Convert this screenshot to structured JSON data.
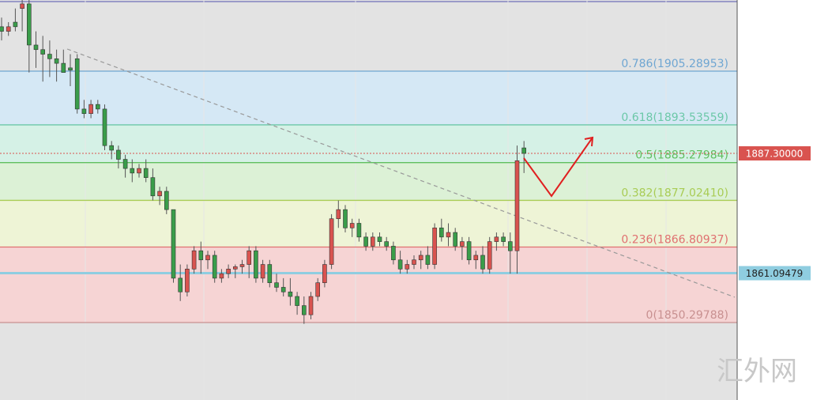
{
  "chart_data": {
    "type": "candlestick",
    "ylim": [
      1833.35,
      1920.85
    ],
    "up_color": "#d9534f",
    "down_color": "#3a9d4a",
    "ohlc": [
      [
        1915,
        1917,
        1912,
        1914
      ],
      [
        1914,
        1916,
        1913,
        1915
      ],
      [
        1916,
        1919,
        1914,
        1915
      ],
      [
        1919,
        1921,
        1914,
        1920
      ],
      [
        1920,
        1921,
        1905,
        1911
      ],
      [
        1911,
        1914,
        1906,
        1910
      ],
      [
        1910,
        1913,
        1903,
        1909
      ],
      [
        1909,
        1912,
        1904,
        1908
      ],
      [
        1908,
        1910,
        1903,
        1907
      ],
      [
        1907,
        1910,
        1905,
        1905
      ],
      [
        1906,
        1909,
        1902,
        1905.5
      ],
      [
        1908,
        1909,
        1896,
        1897
      ],
      [
        1897,
        1899,
        1895,
        1896
      ],
      [
        1896,
        1899,
        1895,
        1898
      ],
      [
        1898,
        1899,
        1896,
        1897
      ],
      [
        1897,
        1898,
        1888,
        1889
      ],
      [
        1889,
        1890,
        1886,
        1888
      ],
      [
        1888,
        1889,
        1884,
        1886
      ],
      [
        1886,
        1887,
        1882,
        1884
      ],
      [
        1884,
        1886,
        1881,
        1883
      ],
      [
        1883,
        1885,
        1882,
        1884
      ],
      [
        1884,
        1886,
        1881,
        1882
      ],
      [
        1882,
        1884,
        1877,
        1878
      ],
      [
        1878,
        1880,
        1876,
        1879
      ],
      [
        1879,
        1880,
        1874,
        1875
      ],
      [
        1875,
        1875,
        1859,
        1860
      ],
      [
        1860,
        1863,
        1855,
        1857
      ],
      [
        1857,
        1863,
        1856,
        1862
      ],
      [
        1862,
        1867,
        1861,
        1866
      ],
      [
        1866,
        1868,
        1861,
        1864
      ],
      [
        1864,
        1866,
        1862,
        1865
      ],
      [
        1865,
        1866,
        1859,
        1860
      ],
      [
        1860,
        1862,
        1859,
        1861
      ],
      [
        1861,
        1863,
        1860,
        1862
      ],
      [
        1862,
        1863,
        1860,
        1862.5
      ],
      [
        1862.5,
        1864,
        1861,
        1863
      ],
      [
        1863,
        1867,
        1860,
        1866
      ],
      [
        1866,
        1867,
        1859,
        1860
      ],
      [
        1860,
        1864,
        1859,
        1863
      ],
      [
        1863,
        1864,
        1858,
        1859
      ],
      [
        1859,
        1861,
        1857,
        1858
      ],
      [
        1858,
        1860,
        1856,
        1857
      ],
      [
        1857,
        1860,
        1854,
        1856
      ],
      [
        1856,
        1857,
        1852,
        1854
      ],
      [
        1854,
        1856,
        1850,
        1852
      ],
      [
        1852,
        1857,
        1851,
        1856
      ],
      [
        1856,
        1860,
        1855,
        1859
      ],
      [
        1859,
        1864,
        1858,
        1863
      ],
      [
        1863,
        1874,
        1862,
        1873
      ],
      [
        1873,
        1877,
        1871,
        1875
      ],
      [
        1875,
        1876,
        1870,
        1871
      ],
      [
        1871,
        1873,
        1869,
        1872
      ],
      [
        1872,
        1873,
        1868,
        1869
      ],
      [
        1869,
        1870,
        1866,
        1867
      ],
      [
        1867,
        1870,
        1866,
        1869
      ],
      [
        1869,
        1870,
        1867,
        1868
      ],
      [
        1868,
        1869,
        1866,
        1867
      ],
      [
        1867,
        1868,
        1863,
        1864
      ],
      [
        1864,
        1866,
        1861,
        1862
      ],
      [
        1862,
        1864,
        1861,
        1863
      ],
      [
        1863,
        1865,
        1862,
        1864
      ],
      [
        1864,
        1866,
        1862,
        1865
      ],
      [
        1865,
        1867,
        1862,
        1863
      ],
      [
        1863,
        1872,
        1862,
        1871
      ],
      [
        1871,
        1873,
        1868,
        1869
      ],
      [
        1869,
        1872,
        1867,
        1870
      ],
      [
        1870,
        1871,
        1866,
        1867
      ],
      [
        1867,
        1869,
        1864,
        1868
      ],
      [
        1868,
        1869,
        1863,
        1864
      ],
      [
        1864,
        1866,
        1862,
        1865
      ],
      [
        1865,
        1867,
        1861,
        1862
      ],
      [
        1862,
        1869,
        1861,
        1868
      ],
      [
        1868,
        1870,
        1866,
        1869
      ],
      [
        1869,
        1870,
        1867,
        1868
      ],
      [
        1868,
        1870,
        1861,
        1866
      ],
      [
        1866,
        1889,
        1861,
        1885.7
      ],
      [
        1888.5,
        1890,
        1883,
        1887.3
      ]
    ],
    "levels": [
      {
        "value": 1905.28953,
        "label": "0.786(1905.28953)",
        "color": "#6fa6d2",
        "band": "#d5e8f5"
      },
      {
        "value": 1893.53559,
        "label": "0.618(1893.53559)",
        "color": "#6cc8a8",
        "band": "#d5f1e6"
      },
      {
        "value": 1885.27984,
        "label": "0.5(1885.27984)",
        "color": "#5fbf5f",
        "band": "#dcf1d6"
      },
      {
        "value": 1877.0241,
        "label": "0.382(1877.02410)",
        "color": "#a9cc55",
        "band": "#eef4d6"
      },
      {
        "value": 1866.80937,
        "label": "0.236(1866.80937)",
        "color": "#e07070",
        "band": "#f6d4d4"
      },
      {
        "value": 1850.29788,
        "label": "0(1850.29788)",
        "color": "#c89090",
        "band": null
      }
    ],
    "price_labels": [
      {
        "value": 1887.3,
        "label": "1887.30000",
        "color": "#d9534f",
        "line": "dotted"
      },
      {
        "value": 1861.09479,
        "label": "1861.09479",
        "color": "#8fcde0",
        "line": "solid"
      }
    ],
    "watermark": "汇外网"
  }
}
